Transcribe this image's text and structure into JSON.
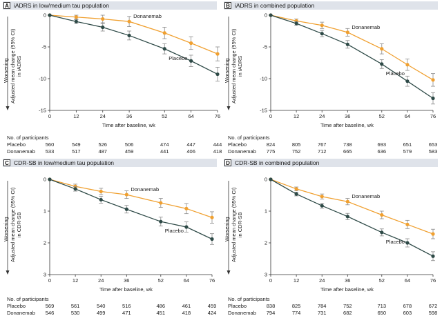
{
  "participants_label": "No. of participants",
  "colors": {
    "placebo": "#2e4a47",
    "donanemab": "#f0a030",
    "error": "#888888",
    "axis": "#333333",
    "header": "#dfe3ea"
  },
  "panels": [
    {
      "letter": "A",
      "title": "iADRS in low/medium tau population",
      "worsening": "Worsening",
      "ylabel_lines": [
        "Adjusted mean change (95% CI)",
        "in iADRS"
      ],
      "xlabel": "Time after baseline, wk",
      "table": {
        "rows": [
          {
            "name": "Placebo",
            "values": [
              "560",
              "549",
              "526",
              "506",
              "474",
              "447",
              "444"
            ]
          },
          {
            "name": "Donanemab",
            "values": [
              "533",
              "517",
              "487",
              "459",
              "441",
              "406",
              "418"
            ]
          }
        ]
      }
    },
    {
      "letter": "B",
      "title": "iADRS in combined population",
      "worsening": "Worsening",
      "ylabel_lines": [
        "Adjusted mean change (95% CI)",
        "in iADRS"
      ],
      "xlabel": "Time after baseline, wk",
      "table": {
        "rows": [
          {
            "name": "Placebo",
            "values": [
              "824",
              "805",
              "767",
              "738",
              "693",
              "651",
              "653"
            ]
          },
          {
            "name": "Donanemab",
            "values": [
              "775",
              "752",
              "712",
              "665",
              "636",
              "579",
              "583"
            ]
          }
        ]
      }
    },
    {
      "letter": "C",
      "title": "CDR-SB in low/medium tau population",
      "worsening": "Worsening",
      "ylabel_lines": [
        "Adjusted mean change (95% CI)",
        "in CDR-SB"
      ],
      "xlabel": "Time after baseline, wk",
      "table": {
        "rows": [
          {
            "name": "Placebo",
            "values": [
              "569",
              "561",
              "540",
              "516",
              "486",
              "461",
              "459"
            ]
          },
          {
            "name": "Donanemab",
            "values": [
              "546",
              "530",
              "499",
              "471",
              "451",
              "418",
              "424"
            ]
          }
        ]
      }
    },
    {
      "letter": "D",
      "title": "CDR-SB in combined population",
      "worsening": "Worsening",
      "ylabel_lines": [
        "Adjusted mean change (95% CI)",
        "in CDR-SB"
      ],
      "xlabel": "Time after baseline, wk",
      "table": {
        "rows": [
          {
            "name": "Placebo",
            "values": [
              "838",
              "825",
              "784",
              "752",
              "713",
              "678",
              "672"
            ]
          },
          {
            "name": "Donanemab",
            "values": [
              "794",
              "774",
              "731",
              "682",
              "650",
              "603",
              "598"
            ]
          }
        ]
      }
    }
  ],
  "chart_data": [
    {
      "type": "line",
      "title": "iADRS in low/medium tau population",
      "xlabel": "Time after baseline, wk",
      "ylabel": "Adjusted mean change (95% CI) in iADRS",
      "x": [
        0,
        12,
        24,
        36,
        52,
        64,
        76
      ],
      "xlim": [
        0,
        76
      ],
      "ylim": [
        -15,
        0
      ],
      "yticks": [
        0,
        -5,
        -10,
        -15
      ],
      "y_inverted": false,
      "grid": false,
      "series": [
        {
          "name": "Placebo",
          "label_at": 52,
          "values": [
            0,
            -1.0,
            -1.9,
            -3.2,
            -5.3,
            -7.2,
            -9.3
          ],
          "err": [
            0,
            0.3,
            0.6,
            0.7,
            0.8,
            0.9,
            1.1
          ]
        },
        {
          "name": "Donanemab",
          "label_at": 36,
          "values": [
            0,
            -0.3,
            -0.6,
            -1.0,
            -2.8,
            -4.4,
            -6.1
          ],
          "err": [
            0,
            0.3,
            0.6,
            0.8,
            0.9,
            1.0,
            1.1
          ]
        }
      ]
    },
    {
      "type": "line",
      "title": "iADRS in combined population",
      "xlabel": "Time after baseline, wk",
      "ylabel": "Adjusted mean change (95% CI) in iADRS",
      "x": [
        0,
        12,
        24,
        36,
        52,
        64,
        76
      ],
      "xlim": [
        0,
        76
      ],
      "ylim": [
        -15,
        0
      ],
      "yticks": [
        0,
        -5,
        -10,
        -15
      ],
      "y_inverted": false,
      "grid": false,
      "series": [
        {
          "name": "Placebo",
          "label_at": 52,
          "values": [
            0,
            -1.3,
            -2.9,
            -4.6,
            -7.7,
            -10.4,
            -13.1
          ],
          "err": [
            0,
            0.3,
            0.5,
            0.6,
            0.7,
            0.8,
            0.9
          ]
        },
        {
          "name": "Donanemab",
          "label_at": 36,
          "values": [
            0,
            -0.9,
            -1.6,
            -2.7,
            -5.3,
            -7.8,
            -10.2
          ],
          "err": [
            0,
            0.3,
            0.5,
            0.6,
            0.8,
            0.9,
            1.0
          ]
        }
      ]
    },
    {
      "type": "line",
      "title": "CDR-SB in low/medium tau population",
      "xlabel": "Time after baseline, wk",
      "ylabel": "Adjusted mean change (95% CI) in CDR-SB",
      "x": [
        0,
        12,
        24,
        36,
        52,
        64,
        76
      ],
      "xlim": [
        0,
        76
      ],
      "ylim": [
        0,
        3
      ],
      "yticks": [
        0,
        1,
        2,
        3
      ],
      "y_inverted": true,
      "grid": false,
      "series": [
        {
          "name": "Placebo",
          "label_at": 52,
          "values": [
            0,
            0.3,
            0.64,
            0.94,
            1.33,
            1.5,
            1.88
          ],
          "err": [
            0,
            0.07,
            0.11,
            0.12,
            0.14,
            0.16,
            0.17
          ]
        },
        {
          "name": "Donanemab",
          "label_at": 36,
          "values": [
            0,
            0.22,
            0.38,
            0.48,
            0.74,
            0.92,
            1.2
          ],
          "err": [
            0,
            0.07,
            0.1,
            0.12,
            0.14,
            0.16,
            0.18
          ]
        }
      ]
    },
    {
      "type": "line",
      "title": "CDR-SB in combined population",
      "xlabel": "Time after baseline, wk",
      "ylabel": "Adjusted mean change (95% CI) in CDR-SB",
      "x": [
        0,
        12,
        24,
        36,
        52,
        64,
        76
      ],
      "xlim": [
        0,
        76
      ],
      "ylim": [
        0,
        3
      ],
      "yticks": [
        0,
        1,
        2,
        3
      ],
      "y_inverted": true,
      "grid": false,
      "series": [
        {
          "name": "Placebo",
          "label_at": 52,
          "values": [
            0,
            0.46,
            0.83,
            1.17,
            1.67,
            2.0,
            2.42
          ],
          "err": [
            0,
            0.06,
            0.08,
            0.1,
            0.11,
            0.13,
            0.14
          ]
        },
        {
          "name": "Donanemab",
          "label_at": 36,
          "values": [
            0,
            0.3,
            0.54,
            0.7,
            1.12,
            1.42,
            1.72
          ],
          "err": [
            0,
            0.06,
            0.08,
            0.1,
            0.12,
            0.13,
            0.15
          ]
        }
      ]
    }
  ]
}
